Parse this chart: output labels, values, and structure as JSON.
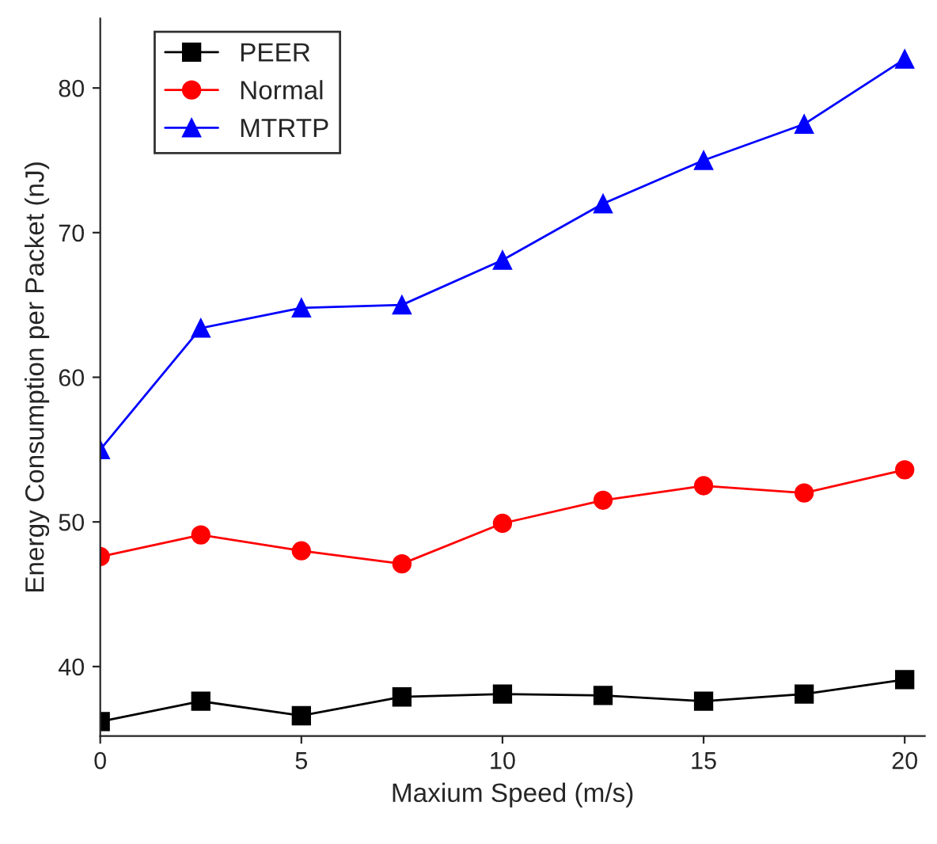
{
  "chart_data": {
    "type": "line",
    "xlabel": "Maxium Speed (m/s)",
    "ylabel": "Energy Consumption per Packet (nJ)",
    "x": [
      0,
      2.5,
      5,
      7.5,
      10,
      12.5,
      15,
      17.5,
      20
    ],
    "series": [
      {
        "name": "PEER",
        "color": "#000000",
        "marker": "square",
        "values": [
          36.2,
          37.6,
          36.6,
          37.9,
          38.1,
          38.0,
          37.6,
          38.1,
          39.1
        ]
      },
      {
        "name": "Normal",
        "color": "#ff0000",
        "marker": "circle",
        "values": [
          47.6,
          49.1,
          48.0,
          47.1,
          49.9,
          51.5,
          52.5,
          52.0,
          53.6
        ]
      },
      {
        "name": "MTRTP",
        "color": "#0000ff",
        "marker": "triangle",
        "values": [
          55.0,
          63.4,
          64.8,
          65.0,
          68.1,
          72.0,
          75.0,
          77.5,
          82.0
        ]
      }
    ],
    "xlim": [
      0,
      20.5
    ],
    "xticks": [
      0,
      5,
      10,
      15,
      20
    ],
    "ylim": [
      35.2,
      84.8
    ],
    "yticks": [
      40,
      50,
      60,
      70,
      80
    ],
    "legend": "top left",
    "grid": false,
    "line_style": "solid"
  }
}
